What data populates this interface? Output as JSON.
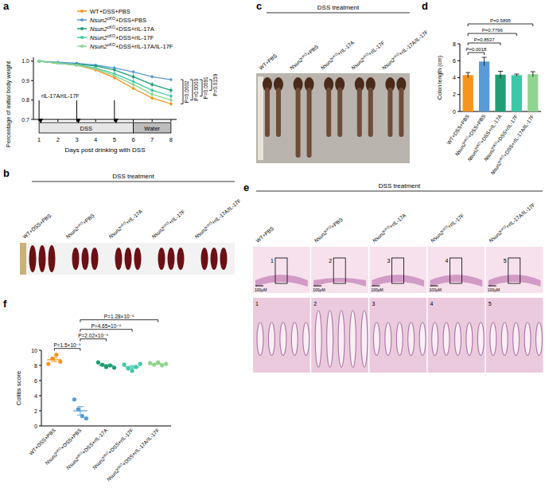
{
  "chart_data": [
    {
      "type": "line",
      "panel": "a",
      "x_label": "Days post drinking with DSS",
      "y_label": "Percentage of initial body weight",
      "x": [
        1,
        2,
        3,
        4,
        5,
        6,
        7,
        8
      ],
      "xlim": [
        0.7,
        8.3
      ],
      "xticks": [
        1,
        2,
        3,
        4,
        5,
        6,
        7,
        8
      ],
      "ylim": [
        0.7,
        1.02
      ],
      "yticks": [
        0.7,
        0.8,
        0.9,
        {
          "value": 1,
          "label": "1.0"
        }
      ],
      "legend": "top-right",
      "marker": "circle",
      "series": [
        {
          "name": "WT+DSS+PBS",
          "color": "#F7941D",
          "values": [
            1.0,
            0.99,
            0.98,
            0.955,
            0.915,
            0.86,
            0.81,
            0.78
          ],
          "errors": [
            0,
            0.005,
            0.008,
            0.01,
            0.012,
            0.01,
            0.012,
            0.01
          ]
        },
        {
          "name": "Nsun2cKO+DSS+PBS",
          "color": "#5B9BD5",
          "values": [
            1.0,
            0.995,
            0.99,
            0.98,
            0.965,
            0.945,
            0.92,
            0.905
          ],
          "errors": [
            0,
            0.004,
            0.005,
            0.006,
            0.008,
            0.01,
            0.008,
            0.008
          ]
        },
        {
          "name": "Nsun2cKO+DSS+rIL-17A",
          "color": "#1F9E75",
          "values": [
            1.0,
            0.99,
            0.985,
            0.975,
            0.955,
            0.92,
            0.88,
            0.85
          ],
          "errors": [
            0,
            0.005,
            0.006,
            0.008,
            0.01,
            0.012,
            0.012,
            0.015
          ]
        },
        {
          "name": "Nsun2cKO+DSS+rIL-17F",
          "color": "#3DC8A8",
          "values": [
            1.0,
            0.99,
            0.98,
            0.965,
            0.935,
            0.895,
            0.85,
            0.82
          ],
          "errors": [
            0,
            0.005,
            0.006,
            0.008,
            0.01,
            0.012,
            0.012,
            0.012
          ]
        },
        {
          "name": "Nsun2cKO+DSS+rIL-17A/IL-17F",
          "color": "#90D58F",
          "values": [
            1.0,
            0.99,
            0.98,
            0.96,
            0.925,
            0.88,
            0.83,
            0.8
          ],
          "errors": [
            0,
            0.005,
            0.006,
            0.008,
            0.01,
            0.012,
            0.012,
            0.012
          ]
        }
      ],
      "phases": [
        {
          "label": "DSS",
          "start": 1,
          "end": 6
        },
        {
          "label": "Water",
          "start": 6,
          "end": 8
        }
      ],
      "injection_label": "rIL-17A/rIL-17F",
      "injection_days": [
        1,
        3,
        5
      ],
      "annotations": [
        {
          "text": "P=0.0002",
          "series": [
            1,
            0
          ]
        },
        {
          "text": "P=0.0003",
          "series": [
            1,
            4
          ]
        },
        {
          "text": "P=0.0091",
          "series": [
            1,
            3
          ]
        },
        {
          "text": "P=0.0159",
          "series": [
            1,
            2
          ]
        }
      ]
    },
    {
      "type": "bar",
      "panel": "d",
      "y_label": "Colon length (cm)",
      "categories": [
        "WT+DSS+PBS",
        "Nsun2cKO+DSS+PBS",
        "Nsun2cKO+DSS+rIL-17A",
        "Nsun2cKO+DSS+rIL-17F",
        "Nsun2cKO+DSS+rIL-17A/IL-17F"
      ],
      "values": [
        4.3,
        5.9,
        4.35,
        4.3,
        4.4
      ],
      "errors": [
        0.3,
        0.5,
        0.4,
        0.12,
        0.3
      ],
      "colors": [
        "#F7941D",
        "#5B9BD5",
        "#1F9E75",
        "#3DC8A8",
        "#90D58F"
      ],
      "ylim": [
        0,
        8
      ],
      "yticks": [
        0,
        2,
        4,
        6,
        8
      ],
      "annotations": [
        {
          "text": "P=0.0018",
          "pair": [
            0,
            1
          ]
        },
        {
          "text": "P=0.8537",
          "pair": [
            0,
            2
          ]
        },
        {
          "text": "P=0.7796",
          "pair": [
            0,
            3
          ]
        },
        {
          "text": "P=0.5895",
          "pair": [
            0,
            4
          ]
        }
      ]
    },
    {
      "type": "scatter",
      "panel": "f",
      "y_label": "Colitis score",
      "categories": [
        "WT+DSS+PBS",
        "Nsun2cKO+DSS+PBS",
        "Nsun2cKO+DSS+rIL-17A",
        "Nsun2cKO+DSS+rIL-17F",
        "Nsun2cKO+DSS+rIL-17A/IL-17F"
      ],
      "points": [
        [
          8.2,
          8.9,
          9.4,
          8.5
        ],
        [
          3.5,
          2.2,
          1.3,
          1.0
        ],
        [
          8.4,
          8.1,
          7.8,
          8.0,
          7.7
        ],
        [
          8.1,
          7.6,
          7.3,
          7.8,
          8.2
        ],
        [
          8.3,
          8.1,
          8.4,
          8.0,
          8.2
        ]
      ],
      "means": [
        8.75,
        2.0,
        8.0,
        7.8,
        8.2
      ],
      "errors": [
        0.26,
        0.56,
        0.12,
        0.16,
        0.07
      ],
      "colors": [
        "#F7941D",
        "#5B9BD5",
        "#1F9E75",
        "#3DC8A8",
        "#90D58F"
      ],
      "marker": "circle",
      "ylim": [
        0,
        10
      ],
      "yticks": [
        0,
        2,
        4,
        6,
        8,
        10
      ],
      "annotations": [
        {
          "text": "P=1.5×10⁻⁵",
          "pair": [
            0,
            1
          ]
        },
        {
          "text": "P=2.02×10⁻⁵",
          "pair": [
            1,
            2
          ]
        },
        {
          "text": "P=4.65×10⁻⁵",
          "pair": [
            1,
            3
          ]
        },
        {
          "text": "P=1.28×10⁻⁵",
          "pair": [
            1,
            4
          ]
        }
      ]
    }
  ],
  "image_panels": [
    {
      "panel": "b",
      "header": "DSS treatment",
      "groups": [
        "WT+DSS+PBS",
        "Nsun2cKO+PBS",
        "Nsun2cKO+rIL-17A",
        "Nsun2cKO+rIL-17F",
        "Nsun2cKO+rIL-17A/IL-17F"
      ]
    },
    {
      "panel": "c",
      "header": "DSS treatment",
      "groups": [
        "WT+PBS",
        "Nsun2cKO+PBS",
        "Nsun2cKO+rIL-17A",
        "Nsun2cKO+rIL-17F",
        "Nsun2cKO+rIL-17A/IL-17F"
      ]
    },
    {
      "panel": "e",
      "header": "DSS treatment",
      "groups": [
        "WT+PBS",
        "Nsun2cKO+PBS",
        "Nsun2cKO+rIL-17A",
        "Nsun2cKO+rIL-17F",
        "Nsun2cKO+rIL-17A/IL-17F"
      ],
      "image_numbers": [
        "1",
        "2",
        "3",
        "4",
        "5"
      ],
      "scale_label": "100μM"
    }
  ]
}
